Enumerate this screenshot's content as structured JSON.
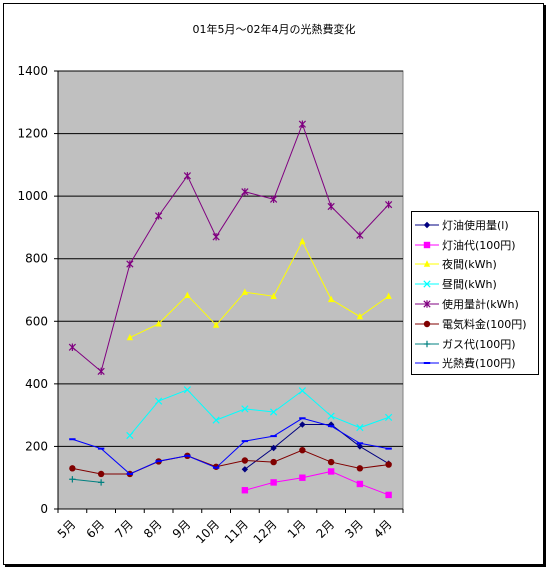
{
  "chart_data": {
    "type": "line",
    "title": "01年5月～02年4月の光熱費変化",
    "categories": [
      "5月",
      "6月",
      "7月",
      "8月",
      "9月",
      "10月",
      "11月",
      "12月",
      "1月",
      "2月",
      "3月",
      "4月"
    ],
    "ylim": [
      0,
      1400
    ],
    "yticks": [
      0,
      200,
      400,
      600,
      800,
      1000,
      1200,
      1400
    ],
    "grid": true,
    "legend_position": "right",
    "plot_background": "#c0c0c0",
    "series": [
      {
        "name": "灯油使用量(l)",
        "color": "#000080",
        "marker": "diamond",
        "values": [
          null,
          null,
          null,
          null,
          null,
          null,
          127,
          195,
          270,
          270,
          200,
          145
        ]
      },
      {
        "name": "灯油代(100円)",
        "color": "#ff00ff",
        "marker": "square",
        "values": [
          null,
          null,
          null,
          null,
          null,
          null,
          60,
          85,
          100,
          120,
          80,
          45
        ]
      },
      {
        "name": "夜間(kWh)",
        "color": "#ffff00",
        "marker": "triangle",
        "values": [
          null,
          null,
          548,
          592,
          683,
          588,
          693,
          680,
          855,
          670,
          615,
          680
        ]
      },
      {
        "name": "昼間(kWh)",
        "color": "#00ffff",
        "marker": "x",
        "values": [
          null,
          null,
          235,
          345,
          381,
          284,
          320,
          310,
          378,
          297,
          260,
          293
        ]
      },
      {
        "name": "使用量計(kWh)",
        "color": "#800080",
        "marker": "star",
        "values": [
          517,
          440,
          783,
          937,
          1065,
          870,
          1014,
          990,
          1230,
          967,
          875,
          973
        ]
      },
      {
        "name": "電気料金(100円)",
        "color": "#800000",
        "marker": "circle",
        "values": [
          130,
          112,
          112,
          152,
          170,
          135,
          155,
          150,
          188,
          150,
          130,
          142
        ]
      },
      {
        "name": "ガス代(100円)",
        "color": "#008080",
        "marker": "plus",
        "values": [
          95,
          85,
          null,
          null,
          null,
          null,
          null,
          null,
          null,
          null,
          null,
          null
        ]
      },
      {
        "name": "光熱費(100円)",
        "color": "#0000ff",
        "marker": "dash",
        "values": [
          223,
          193,
          112,
          153,
          170,
          132,
          217,
          233,
          290,
          265,
          210,
          193
        ]
      }
    ]
  }
}
